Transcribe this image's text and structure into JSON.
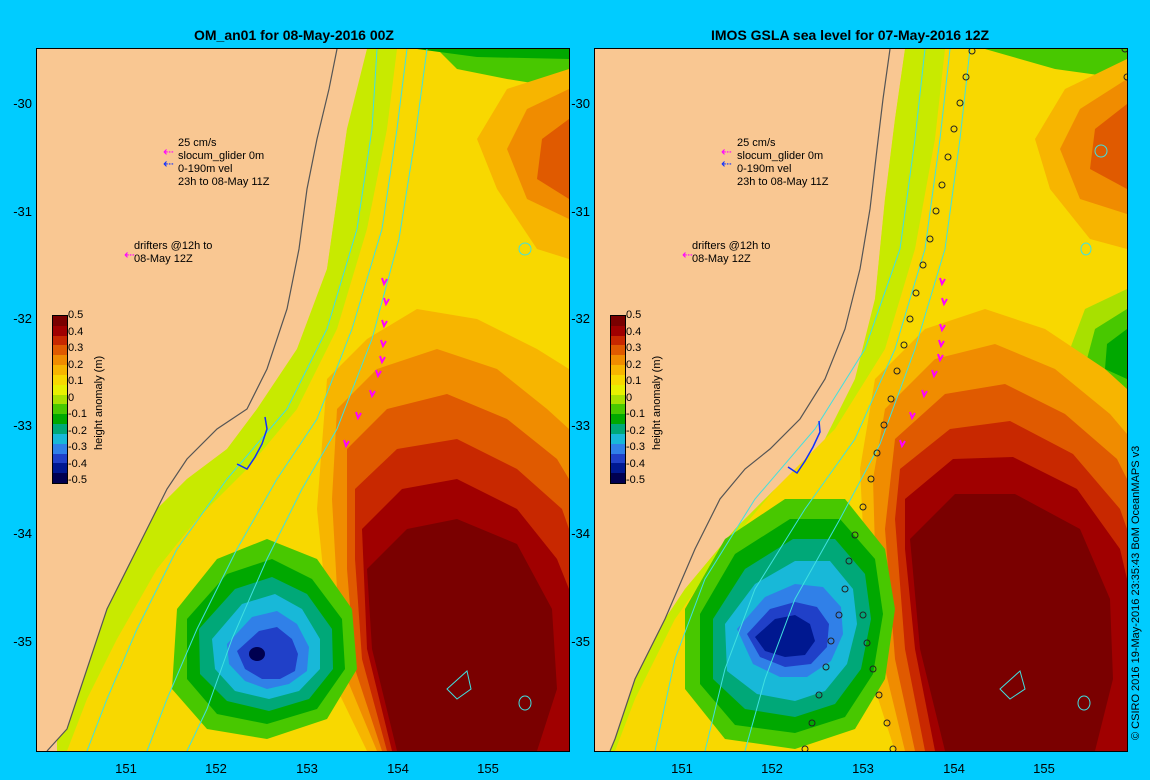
{
  "panels": [
    {
      "title": "OM_an01 for 08-May-2016 00Z",
      "legend": {
        "speed": "25 cm/s",
        "glider": "slocum_glider 0m",
        "vel_depth": "0-190m vel",
        "vel_time": "23h to 08-May 11Z",
        "drifters_1": "drifters @12h to",
        "drifters_2": "08-May 12Z"
      }
    },
    {
      "title": "IMOS GSLA sea level  for 07-May-2016 12Z",
      "legend": {
        "speed": "25 cm/s",
        "glider": "slocum_glider 0m",
        "vel_depth": "0-190m vel",
        "vel_time": "23h to 08-May 11Z",
        "drifters_1": "drifters @12h to",
        "drifters_2": "08-May 12Z"
      }
    }
  ],
  "axes": {
    "y_ticks": [
      "-30",
      "-31",
      "-32",
      "-33",
      "-34",
      "-35"
    ],
    "x_ticks": [
      "151",
      "152",
      "153",
      "154",
      "155"
    ]
  },
  "colorbar": {
    "title": "height anomaly (m)",
    "labels": [
      "0.5",
      "0.4",
      "0.3",
      "0.2",
      "0.1",
      "0",
      "-0.1",
      "-0.2",
      "-0.3",
      "-0.4",
      "-0.5"
    ],
    "colors": [
      "#7a0000",
      "#a00000",
      "#c82800",
      "#e05a00",
      "#f08c00",
      "#f7b500",
      "#f8d800",
      "#e8f000",
      "#a8e000",
      "#48c800",
      "#00a800",
      "#00a878",
      "#18b8d8",
      "#3080e8",
      "#2040c8",
      "#001890",
      "#000050"
    ]
  },
  "copyright": "© CSIRO 2016  19-May-2016 23:35:43 BoM OceanMAPS v3",
  "colors": {
    "background": "#00ccff",
    "land": "#f9c792",
    "drifter": "#ff00ff",
    "glider": "#1030ff",
    "contour": "#40e0e0"
  }
}
